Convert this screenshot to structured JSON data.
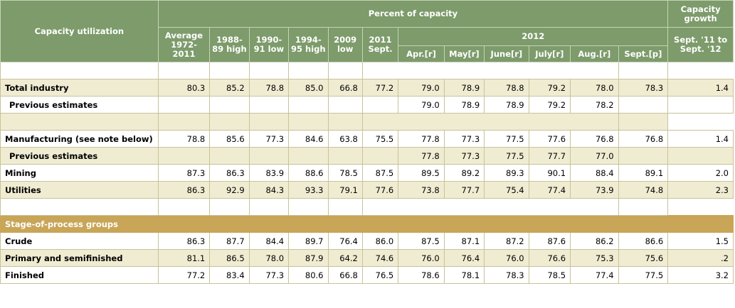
{
  "header": {
    "capacity_utilization": "Capacity utilization",
    "percent_of_capacity": "Percent of capacity",
    "capacity_growth": "Capacity growth",
    "columns": [
      "Average 1972-2011",
      "1988-89 high",
      "1990-91 low",
      "1994-95 high",
      "2009 low",
      "2011 Sept."
    ],
    "year_2012": "2012",
    "months": [
      "Apr.[r]",
      "May[r]",
      "June[r]",
      "July[r]",
      "Aug.[r]",
      "Sept.[p]"
    ],
    "growth_period": "Sept. '11 to Sept. '12"
  },
  "rows": {
    "total": {
      "label": "Total industry",
      "values": [
        "80.3",
        "85.2",
        "78.8",
        "85.0",
        "66.8",
        "77.2",
        "79.0",
        "78.9",
        "78.8",
        "79.2",
        "78.0",
        "78.3",
        "1.4"
      ]
    },
    "total_prev": {
      "label": "Previous estimates",
      "values": [
        "",
        "",
        "",
        "",
        "",
        "",
        "79.0",
        "78.9",
        "78.9",
        "79.2",
        "78.2",
        "",
        ""
      ]
    },
    "manufacturing": {
      "label": "Manufacturing (see note below)",
      "values": [
        "78.8",
        "85.6",
        "77.3",
        "84.6",
        "63.8",
        "75.5",
        "77.8",
        "77.3",
        "77.5",
        "77.6",
        "76.8",
        "76.8",
        "1.4"
      ]
    },
    "manufacturing_prev": {
      "label": "Previous estimates",
      "values": [
        "",
        "",
        "",
        "",
        "",
        "",
        "77.8",
        "77.3",
        "77.5",
        "77.7",
        "77.0",
        "",
        ""
      ]
    },
    "mining": {
      "label": "Mining",
      "values": [
        "87.3",
        "86.3",
        "83.9",
        "88.6",
        "78.5",
        "87.5",
        "89.5",
        "89.2",
        "89.3",
        "90.1",
        "88.4",
        "89.1",
        "2.0"
      ]
    },
    "utilities": {
      "label": "Utilities",
      "values": [
        "86.3",
        "92.9",
        "84.3",
        "93.3",
        "79.1",
        "77.6",
        "73.8",
        "77.7",
        "75.4",
        "77.4",
        "73.9",
        "74.8",
        "2.3"
      ]
    },
    "stage_header": {
      "label": "Stage-of-process groups"
    },
    "crude": {
      "label": "Crude",
      "values": [
        "86.3",
        "87.7",
        "84.4",
        "89.7",
        "76.4",
        "86.0",
        "87.5",
        "87.1",
        "87.2",
        "87.6",
        "86.2",
        "86.6",
        "1.5"
      ]
    },
    "primary": {
      "label": "Primary and semifinished",
      "values": [
        "81.1",
        "86.5",
        "78.0",
        "87.9",
        "64.2",
        "74.6",
        "76.0",
        "76.4",
        "76.0",
        "76.6",
        "75.3",
        "75.6",
        ".2"
      ]
    },
    "finished": {
      "label": "Finished",
      "values": [
        "77.2",
        "83.4",
        "77.3",
        "80.6",
        "66.8",
        "76.5",
        "78.6",
        "78.1",
        "78.3",
        "78.5",
        "77.4",
        "77.5",
        "3.2"
      ]
    }
  },
  "colors": {
    "header_bg": "#7d9b6b",
    "section_bg": "#c8a557",
    "alt_row_bg": "#f0ecd2",
    "border": "#c8c29a"
  }
}
